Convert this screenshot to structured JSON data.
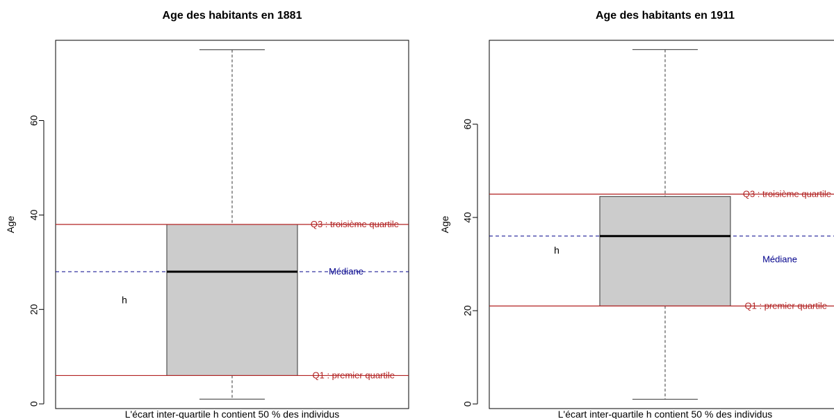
{
  "chart_data": [
    {
      "type": "boxplot",
      "title": "Age des habitants en 1881",
      "ylabel": "Age",
      "xlabel": "L'écart inter-quartile h contient 50 % des individus",
      "ylim": [
        -1,
        77
      ],
      "yticks": [
        0,
        20,
        40,
        60
      ],
      "box": {
        "min": 1,
        "q1": 6,
        "median": 28,
        "q3": 38,
        "max": 75
      },
      "annotations": {
        "q3_label": "Q3 : troisième quartile",
        "q1_label": "Q1 : premier quartile",
        "median_label": "Médiane",
        "h_label": "h",
        "h_value_y": 22
      },
      "colors": {
        "quartile_line": "#b22222",
        "median_line": "#00008b",
        "box_fill": "#cccccc"
      }
    },
    {
      "type": "boxplot",
      "title": "Age des habitants en 1911",
      "ylabel": "Age",
      "xlabel": "L'écart inter-quartile h contient 50 % des individus",
      "ylim": [
        -1,
        78
      ],
      "yticks": [
        0,
        20,
        40,
        60
      ],
      "box": {
        "min": 1,
        "q1": 21,
        "median": 36,
        "q3": 44.5,
        "max": 76
      },
      "annotations": {
        "q3_label": "Q3 : troisième quartile",
        "q1_label": "Q1 : premier quartile",
        "median_label": "Médiane",
        "h_label": "h",
        "h_value_y": 33,
        "median_label_y": 31
      },
      "ref_lines": {
        "q3": 45,
        "q1": 21,
        "median": 36
      },
      "colors": {
        "quartile_line": "#b22222",
        "median_line": "#00008b",
        "box_fill": "#cccccc"
      }
    }
  ]
}
